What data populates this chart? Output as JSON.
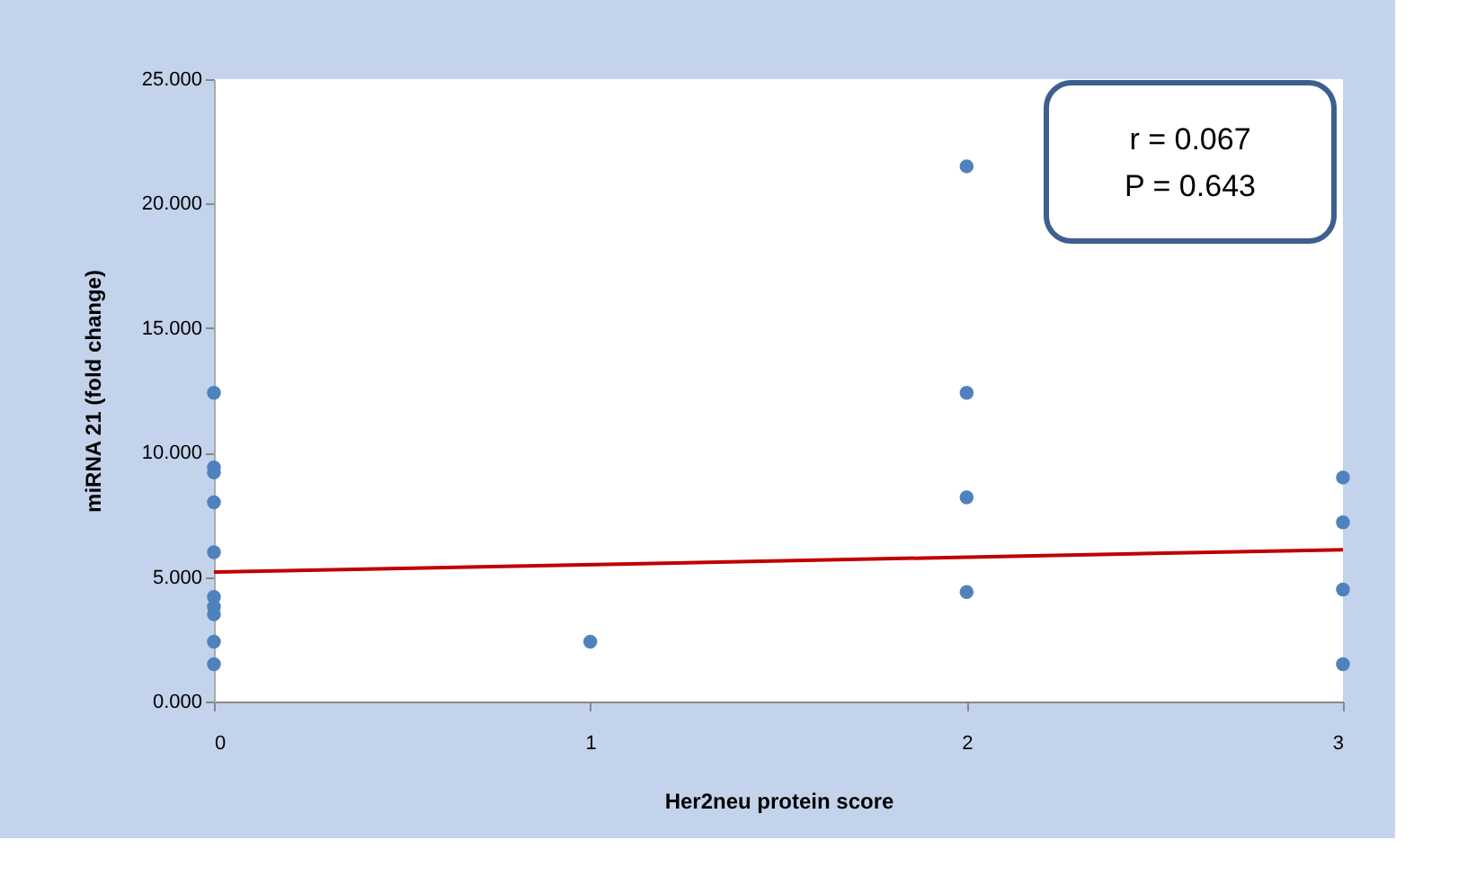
{
  "chart_data": {
    "type": "scatter",
    "xlabel": "Her2neu protein score",
    "ylabel": "miRNA 21 (fold change)",
    "xlim": [
      0,
      3
    ],
    "xticks": [
      0,
      1,
      2,
      3
    ],
    "ylim": [
      0,
      25
    ],
    "yticks": [
      {
        "value": 0,
        "label": "0.000"
      },
      {
        "value": 5,
        "label": "5.000"
      },
      {
        "value": 10,
        "label": "10.000"
      },
      {
        "value": 15,
        "label": "15.000"
      },
      {
        "value": 20,
        "label": "20.000"
      },
      {
        "value": 25,
        "label": "25.000"
      }
    ],
    "grid": false,
    "series": [
      {
        "color": "#4f81bd",
        "marker": "circle",
        "x": [
          0,
          0,
          0,
          0,
          0,
          0,
          0,
          0,
          0,
          0,
          1,
          2,
          2,
          2,
          2,
          3,
          3,
          3,
          3
        ],
        "values": [
          12.4,
          9.4,
          9.2,
          8.0,
          6.0,
          4.2,
          3.8,
          3.5,
          2.4,
          1.5,
          2.4,
          21.5,
          12.4,
          8.2,
          4.4,
          9.0,
          7.2,
          4.5,
          1.5
        ]
      },
      {
        "type": "line",
        "color": "#c00000",
        "marker": "none",
        "line_style": "solid",
        "x": [
          0,
          3
        ],
        "values": [
          5.2,
          6.1
        ]
      }
    ],
    "annotations": [
      "r = 0.067",
      "P = 0.643"
    ]
  }
}
